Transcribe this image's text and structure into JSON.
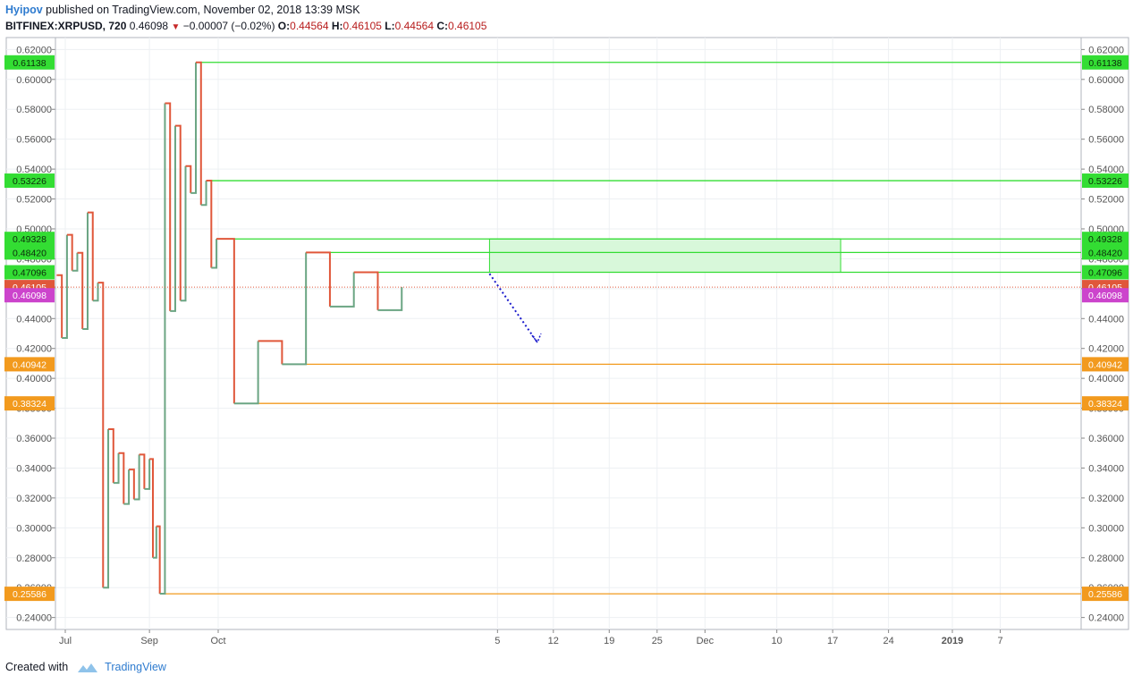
{
  "header": {
    "author": "Hyipov",
    "published_text": "published on TradingView.com, November 02, 2018 13:39 MSK",
    "symbol": "BITFINEX:XRPUSD, 720",
    "last": "0.46098",
    "change": "−0.00007 (−0.02%)",
    "o_label": "O:",
    "o_value": "0.44564",
    "h_label": "H:",
    "h_value": "0.46105",
    "l_label": "L:",
    "l_value": "0.44564",
    "c_label": "C:",
    "c_value": "0.46105"
  },
  "footer": {
    "created_with": "Created with",
    "brand": "TradingView"
  },
  "colors": {
    "up": "#6ba583",
    "down": "#e0573a",
    "resistance": "#33dd33",
    "support": "#f29a1e",
    "zone_fill": "#d8f8da",
    "arrow": "#1a1acc",
    "last_line": "#e0573a",
    "grid": "#edf0f3"
  },
  "chart_data": {
    "type": "line",
    "line_style": "step",
    "ylim": [
      0.232,
      0.628
    ],
    "y_ticks": [
      "0.24000",
      "0.26000",
      "0.28000",
      "0.30000",
      "0.32000",
      "0.34000",
      "0.36000",
      "0.38000",
      "0.40000",
      "0.42000",
      "0.44000",
      "0.46000",
      "0.48000",
      "0.50000",
      "0.52000",
      "0.54000",
      "0.56000",
      "0.58000",
      "0.60000",
      "0.62000"
    ],
    "x_ticks": [
      {
        "label": "Jul",
        "day": 0,
        "bold": false
      },
      {
        "label": "Sep",
        "day": 49,
        "bold": false
      },
      {
        "label": "Oct",
        "day": 89,
        "bold": false
      },
      {
        "label": "5",
        "day": 124,
        "bold": false
      },
      {
        "label": "12",
        "day": 131,
        "bold": false
      },
      {
        "label": "19",
        "day": 138,
        "bold": false
      },
      {
        "label": "25",
        "day": 144,
        "bold": false
      },
      {
        "label": "Dec",
        "day": 150,
        "bold": false
      },
      {
        "label": "10",
        "day": 159,
        "bold": false
      },
      {
        "label": "17",
        "day": 166,
        "bold": false
      },
      {
        "label": "24",
        "day": 173,
        "bold": false
      },
      {
        "label": "2019",
        "day": 181,
        "bold": true
      },
      {
        "label": "7",
        "day": 187,
        "bold": false
      }
    ],
    "step_series": [
      {
        "x": -5,
        "y": 0.469
      },
      {
        "x": -2,
        "y": 0.427
      },
      {
        "x": 1,
        "y": 0.496
      },
      {
        "x": 4,
        "y": 0.472
      },
      {
        "x": 7,
        "y": 0.484
      },
      {
        "x": 10,
        "y": 0.433
      },
      {
        "x": 13,
        "y": 0.511
      },
      {
        "x": 16,
        "y": 0.452
      },
      {
        "x": 19,
        "y": 0.464
      },
      {
        "x": 22,
        "y": 0.26
      },
      {
        "x": 25,
        "y": 0.366
      },
      {
        "x": 28,
        "y": 0.33
      },
      {
        "x": 31,
        "y": 0.35
      },
      {
        "x": 34,
        "y": 0.316
      },
      {
        "x": 37,
        "y": 0.339
      },
      {
        "x": 40,
        "y": 0.319
      },
      {
        "x": 43,
        "y": 0.349
      },
      {
        "x": 46,
        "y": 0.326
      },
      {
        "x": 49,
        "y": 0.346
      },
      {
        "x": 51,
        "y": 0.28
      },
      {
        "x": 53,
        "y": 0.301
      },
      {
        "x": 55,
        "y": 0.2559
      },
      {
        "x": 58,
        "y": 0.584
      },
      {
        "x": 61,
        "y": 0.445
      },
      {
        "x": 64,
        "y": 0.569
      },
      {
        "x": 67,
        "y": 0.452
      },
      {
        "x": 70,
        "y": 0.542
      },
      {
        "x": 73,
        "y": 0.524
      },
      {
        "x": 76,
        "y": 0.6114
      },
      {
        "x": 79,
        "y": 0.516
      },
      {
        "x": 82,
        "y": 0.5323
      },
      {
        "x": 85,
        "y": 0.474
      },
      {
        "x": 88,
        "y": 0.4933
      },
      {
        "x": 91,
        "y": 0.3832
      },
      {
        "x": 94,
        "y": 0.425
      },
      {
        "x": 97,
        "y": 0.4094
      },
      {
        "x": 100,
        "y": 0.4842
      },
      {
        "x": 103,
        "y": 0.448
      },
      {
        "x": 106,
        "y": 0.471
      },
      {
        "x": 109,
        "y": 0.4456
      },
      {
        "x": 112,
        "y": 0.461
      }
    ],
    "levels": [
      {
        "label": "0.61138",
        "value": 0.61138,
        "kind": "resistance",
        "from_day": 76
      },
      {
        "label": "0.53226",
        "value": 0.53226,
        "kind": "resistance",
        "from_day": 82
      },
      {
        "label": "0.49328",
        "value": 0.49328,
        "kind": "resistance",
        "from_day": 88
      },
      {
        "label": "0.48420",
        "value": 0.4842,
        "kind": "resistance",
        "from_day": 100
      },
      {
        "label": "0.47096",
        "value": 0.47096,
        "kind": "resistance",
        "from_day": 106
      },
      {
        "label": "0.40942",
        "value": 0.40942,
        "kind": "support",
        "from_day": 97
      },
      {
        "label": "0.38324",
        "value": 0.38324,
        "kind": "support",
        "from_day": 91
      },
      {
        "label": "0.25586",
        "value": 0.25586,
        "kind": "support",
        "from_day": 55
      }
    ],
    "last_price": {
      "label": "0.46105",
      "value": 0.46105
    },
    "prev_price": {
      "label": "0.46098",
      "value": 0.46098
    },
    "zone": {
      "x0": 123,
      "x1": 167,
      "y_top": 0.49328,
      "y_bottom": 0.47096
    },
    "arrow": {
      "x0": 123,
      "y0": 0.47,
      "x1": 129,
      "y1": 0.424
    }
  }
}
